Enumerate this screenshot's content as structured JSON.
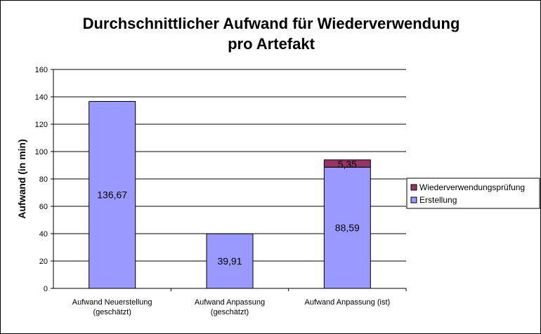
{
  "chart_data": {
    "type": "bar",
    "stacked": true,
    "title_lines": [
      "Durchschnittlicher Aufwand für Wiederverwendung",
      "pro Artefakt"
    ],
    "ylabel": "Aufwand (in min)",
    "xlabel": "",
    "ylim": [
      0,
      160
    ],
    "yticks": [
      0,
      20,
      40,
      60,
      80,
      100,
      120,
      140,
      160
    ],
    "grid": true,
    "legend_position": "right",
    "categories": [
      [
        "Aufwand Neuerstellung",
        "(geschätzt)"
      ],
      [
        "Aufwand Anpassung",
        "(geschätzt)"
      ],
      [
        "Aufwand Anpassung (ist)"
      ]
    ],
    "series": [
      {
        "name": "Erstellung",
        "color": "#9999ff",
        "values": [
          136.67,
          39.91,
          88.59
        ],
        "labels": [
          "136,67",
          "39,91",
          "88,59"
        ]
      },
      {
        "name": "Wiederverwendungsprüfung",
        "color": "#993366",
        "values": [
          0,
          0,
          5.35
        ],
        "labels": [
          "",
          "",
          "5,35"
        ]
      }
    ],
    "legend_order": [
      "Wiederverwendungsprüfung",
      "Erstellung"
    ]
  }
}
